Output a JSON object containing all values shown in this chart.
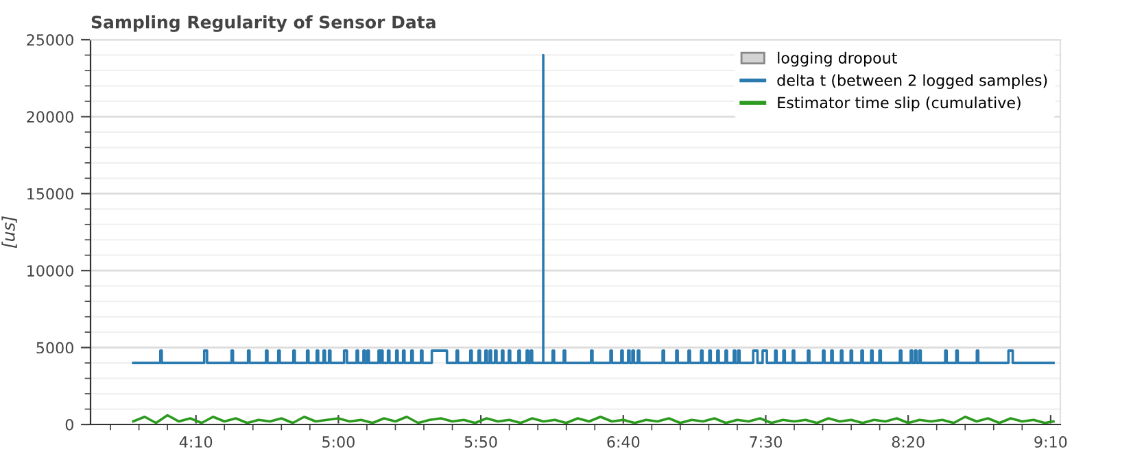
{
  "chart_data": {
    "type": "line",
    "title": "Sampling Regularity of Sensor Data",
    "ylabel": "[us]",
    "xlim": [
      213,
      553.4
    ],
    "ylim": [
      0,
      25000
    ],
    "xticks": [
      {
        "value": 220,
        "label": null
      },
      {
        "value": 230,
        "label": null
      },
      {
        "value": 240,
        "label": null
      },
      {
        "value": 250,
        "label": "4:10"
      },
      {
        "value": 260,
        "label": null
      },
      {
        "value": 270,
        "label": null
      },
      {
        "value": 280,
        "label": null
      },
      {
        "value": 290,
        "label": null
      },
      {
        "value": 300,
        "label": "5:00"
      },
      {
        "value": 310,
        "label": null
      },
      {
        "value": 320,
        "label": null
      },
      {
        "value": 330,
        "label": null
      },
      {
        "value": 340,
        "label": null
      },
      {
        "value": 350,
        "label": "5:50"
      },
      {
        "value": 360,
        "label": null
      },
      {
        "value": 370,
        "label": null
      },
      {
        "value": 380,
        "label": null
      },
      {
        "value": 390,
        "label": null
      },
      {
        "value": 400,
        "label": "6:40"
      },
      {
        "value": 410,
        "label": null
      },
      {
        "value": 420,
        "label": null
      },
      {
        "value": 430,
        "label": null
      },
      {
        "value": 440,
        "label": null
      },
      {
        "value": 450,
        "label": "7:30"
      },
      {
        "value": 460,
        "label": null
      },
      {
        "value": 470,
        "label": null
      },
      {
        "value": 480,
        "label": null
      },
      {
        "value": 490,
        "label": null
      },
      {
        "value": 500,
        "label": "8:20"
      },
      {
        "value": 510,
        "label": null
      },
      {
        "value": 520,
        "label": null
      },
      {
        "value": 530,
        "label": null
      },
      {
        "value": 540,
        "label": null
      },
      {
        "value": 550,
        "label": "9:10"
      }
    ],
    "yticks": [
      0,
      {
        "value": 1000,
        "label": null
      },
      {
        "value": 2000,
        "label": null
      },
      {
        "value": 3000,
        "label": null
      },
      {
        "value": 4000,
        "label": null
      },
      5000,
      {
        "value": 6000,
        "label": null
      },
      {
        "value": 7000,
        "label": null
      },
      {
        "value": 8000,
        "label": null
      },
      {
        "value": 9000,
        "label": null
      },
      10000,
      {
        "value": 11000,
        "label": null
      },
      {
        "value": 12000,
        "label": null
      },
      {
        "value": 13000,
        "label": null
      },
      {
        "value": 14000,
        "label": null
      },
      15000,
      {
        "value": 16000,
        "label": null
      },
      {
        "value": 17000,
        "label": null
      },
      {
        "value": 18000,
        "label": null
      },
      {
        "value": 19000,
        "label": null
      },
      20000,
      {
        "value": 21000,
        "label": null
      },
      {
        "value": 22000,
        "label": null
      },
      {
        "value": 23000,
        "label": null
      },
      {
        "value": 24000,
        "label": null
      },
      25000
    ],
    "grid": "y",
    "legend": "top right",
    "series": [
      {
        "name": "logging dropout",
        "type": "area",
        "color": "#d3d3d3"
      },
      {
        "name": "delta t (between 2 logged samples)",
        "color": "#2a7ab0",
        "x": [
          228,
          237.5,
          237.5,
          238,
          238,
          252.9,
          252.9,
          253.9,
          253.9,
          262.5,
          262.5,
          263,
          263,
          268.3,
          268.3,
          268.8,
          268.8,
          274.6,
          274.6,
          275.1,
          275.1,
          278.9,
          278.9,
          279.4,
          279.4,
          284.2,
          284.2,
          284.7,
          284.7,
          289,
          289,
          289.5,
          289.5,
          292.4,
          292.4,
          292.9,
          292.9,
          294.8,
          294.8,
          295.3,
          295.3,
          296.7,
          296.7,
          297.2,
          297.2,
          302,
          302,
          303,
          303,
          306.4,
          306.4,
          306.9,
          306.9,
          308.8,
          308.8,
          309.3,
          309.3,
          310.2,
          310.2,
          310.7,
          310.7,
          314.1,
          314.1,
          314.6,
          314.6,
          315,
          315,
          315.5,
          315.5,
          317.4,
          317.4,
          317.9,
          317.9,
          320.3,
          320.3,
          320.8,
          320.8,
          322.7,
          322.7,
          323.2,
          323.2,
          325.6,
          325.6,
          326.1,
          326.1,
          329,
          329,
          329.5,
          329.5,
          332.8,
          332.8,
          338.1,
          338.1,
          341.5,
          341.5,
          342,
          342,
          346.3,
          346.3,
          346.8,
          346.8,
          349.2,
          349.2,
          349.7,
          349.7,
          351.6,
          351.6,
          352.1,
          352.1,
          353.1,
          353.1,
          353.6,
          353.6,
          355,
          355,
          355.5,
          355.5,
          357.4,
          357.4,
          357.9,
          357.9,
          359.8,
          359.8,
          360.3,
          360.3,
          363.2,
          363.2,
          363.7,
          363.7,
          366.1,
          366.1,
          366.6,
          366.6,
          367.5,
          367.5,
          368,
          368,
          371.9,
          371.9,
          371.9,
          375.2,
          375.2,
          375.7,
          375.7,
          379.1,
          379.1,
          379.6,
          379.6,
          388.7,
          388.7,
          389.2,
          389.2,
          395.5,
          395.5,
          396,
          396,
          399.3,
          399.3,
          399.8,
          399.8,
          401.7,
          401.7,
          402.2,
          402.2,
          403.2,
          403.2,
          403.7,
          403.7,
          405.1,
          405.1,
          405.6,
          405.6,
          413.8,
          413.8,
          414.3,
          414.3,
          418.6,
          418.6,
          419.1,
          419.1,
          422.9,
          422.9,
          423.4,
          423.4,
          427.3,
          427.3,
          427.8,
          427.8,
          430.2,
          430.2,
          430.7,
          430.7,
          433,
          433,
          433.5,
          433.5,
          435.9,
          435.9,
          436.4,
          436.4,
          438.8,
          438.8,
          439.3,
          439.3,
          440.3,
          440.3,
          440.8,
          440.8,
          445.6,
          445.6,
          447.1,
          447.1,
          448.9,
          448.9,
          450.4,
          450.4,
          453.3,
          453.3,
          453.8,
          453.8,
          456.2,
          456.2,
          456.7,
          456.7,
          459.5,
          459.5,
          460,
          460,
          464.8,
          464.8,
          465.3,
          465.3,
          470.1,
          470.1,
          470.6,
          470.6,
          473,
          473,
          473.5,
          473.5,
          476.4,
          476.4,
          476.9,
          476.9,
          479.8,
          479.8,
          480.3,
          480.3,
          483.6,
          483.6,
          484.1,
          484.1,
          487,
          487,
          487.5,
          487.5,
          489.9,
          489.9,
          490.4,
          490.4,
          497.1,
          497.1,
          497.6,
          497.6,
          500.9,
          500.9,
          501.4,
          501.4,
          502.4,
          502.4,
          502.9,
          502.9,
          503.9,
          503.9,
          504.4,
          504.4,
          513,
          513,
          513.5,
          513.5,
          516.9,
          516.9,
          517.4,
          517.4,
          524.1,
          524.1,
          524.6,
          524.6,
          535.2,
          535.2,
          536.7,
          536.7,
          551
        ],
        "values": [
          4000,
          4000,
          4800,
          4800,
          4000,
          4000,
          4800,
          4800,
          4000,
          4000,
          4800,
          4800,
          4000,
          4000,
          4800,
          4800,
          4000,
          4000,
          4800,
          4800,
          4000,
          4000,
          4800,
          4800,
          4000,
          4000,
          4800,
          4800,
          4000,
          4000,
          4800,
          4800,
          4000,
          4000,
          4800,
          4800,
          4000,
          4000,
          4800,
          4800,
          4000,
          4000,
          4800,
          4800,
          4000,
          4000,
          4800,
          4800,
          4000,
          4000,
          4800,
          4800,
          4000,
          4000,
          4800,
          4800,
          4000,
          4000,
          4800,
          4800,
          4000,
          4000,
          4800,
          4800,
          4000,
          4000,
          4800,
          4800,
          4000,
          4000,
          4800,
          4800,
          4000,
          4000,
          4800,
          4800,
          4000,
          4000,
          4800,
          4800,
          4000,
          4000,
          4800,
          4800,
          4000,
          4000,
          4800,
          4800,
          4000,
          4000,
          4800,
          4800,
          4000,
          4000,
          4800,
          4800,
          4000,
          4000,
          4800,
          4800,
          4000,
          4000,
          4800,
          4800,
          4000,
          4000,
          4800,
          4800,
          4000,
          4000,
          4800,
          4800,
          4000,
          4000,
          4800,
          4800,
          4000,
          4000,
          4800,
          4800,
          4000,
          4000,
          4800,
          4800,
          4000,
          4000,
          4800,
          4800,
          4000,
          4000,
          4800,
          4800,
          4000,
          4000,
          4800,
          4800,
          4000,
          4000,
          24000,
          4000,
          4000,
          4800,
          4800,
          4000,
          4000,
          4800,
          4800,
          4000,
          4000,
          4800,
          4800,
          4000,
          4000,
          4800,
          4800,
          4000,
          4000,
          4800,
          4800,
          4000,
          4000,
          4800,
          4800,
          4000,
          4000,
          4800,
          4800,
          4000,
          4000,
          4800,
          4800,
          4000,
          4000,
          4800,
          4800,
          4000,
          4000,
          4800,
          4800,
          4000,
          4000,
          4800,
          4800,
          4000,
          4000,
          4800,
          4800,
          4000,
          4000,
          4800,
          4800,
          4000,
          4000,
          4800,
          4800,
          4000,
          4000,
          4800,
          4800,
          4000,
          4000,
          4800,
          4800,
          4000,
          4000,
          4800,
          4800,
          4000,
          4000,
          4800,
          4800,
          4000,
          4000,
          4800,
          4800,
          4000,
          4000,
          4800,
          4800,
          4000,
          4000,
          4800,
          4800,
          4000,
          4000,
          4800,
          4800,
          4000,
          4000,
          4800,
          4800,
          4000,
          4000,
          4800,
          4800,
          4000,
          4000,
          4800,
          4800,
          4000,
          4000,
          4800,
          4800,
          4000,
          4000,
          4800,
          4800,
          4000,
          4000,
          4800,
          4800,
          4000,
          4000,
          4800,
          4800,
          4000,
          4000,
          4800,
          4800,
          4000,
          4000,
          4800,
          4800,
          4000,
          4000,
          4800,
          4800,
          4000,
          4000,
          4800,
          4800,
          4000,
          4000,
          4800,
          4800,
          4000,
          4000,
          4800,
          4800,
          4000,
          4000,
          4800,
          4800,
          4000,
          4000,
          4800,
          4800,
          4000,
          4000,
          4800,
          4800,
          4000,
          4000
        ]
      },
      {
        "name": "Estimator time slip (cumulative)",
        "color": "#2b9a1e",
        "x": [
          228,
          232,
          236,
          240,
          244,
          248,
          252,
          256,
          260,
          264,
          268,
          272,
          276,
          280,
          284,
          288,
          292,
          296,
          300,
          304,
          308,
          312,
          316,
          320,
          324,
          328,
          332,
          336,
          340,
          344,
          348,
          352,
          356,
          360,
          364,
          368,
          372,
          376,
          380,
          384,
          388,
          392,
          396,
          400,
          404,
          408,
          412,
          416,
          420,
          424,
          428,
          432,
          436,
          440,
          444,
          448,
          452,
          456,
          460,
          464,
          468,
          472,
          476,
          480,
          484,
          488,
          492,
          496,
          500,
          504,
          508,
          512,
          516,
          520,
          524,
          528,
          532,
          536,
          540,
          544,
          548,
          551
        ],
        "values": [
          200,
          500,
          100,
          600,
          200,
          400,
          100,
          500,
          200,
          400,
          100,
          300,
          200,
          400,
          100,
          500,
          200,
          300,
          400,
          200,
          300,
          100,
          400,
          200,
          500,
          100,
          300,
          400,
          200,
          300,
          100,
          400,
          200,
          300,
          100,
          400,
          200,
          300,
          100,
          400,
          200,
          500,
          200,
          300,
          100,
          300,
          200,
          400,
          100,
          300,
          200,
          400,
          100,
          300,
          200,
          400,
          100,
          300,
          200,
          300,
          100,
          400,
          200,
          300,
          100,
          300,
          200,
          400,
          100,
          300,
          200,
          300,
          100,
          500,
          200,
          400,
          100,
          400,
          200,
          300,
          100,
          200
        ]
      }
    ]
  }
}
